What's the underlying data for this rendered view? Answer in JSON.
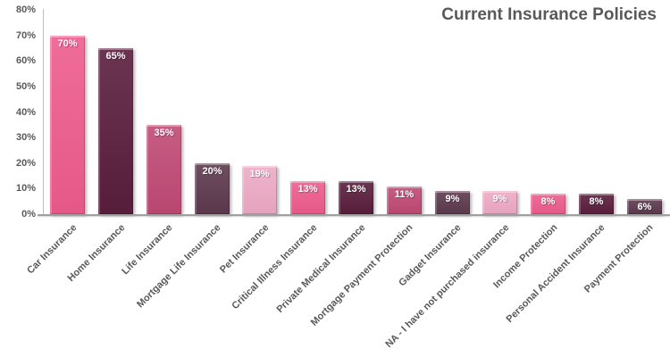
{
  "colors": {
    "text": "#595959",
    "axis_line": "#bfbfbf",
    "baseline": "#a0a0a0",
    "value_label_text": "#ffffff",
    "background": "#ffffff",
    "palette": {
      "bright_pink": "#ee5c8d",
      "dark_maroon": "#5a1e3d",
      "medium_rose": "#c04a75",
      "dark_plum": "#5e3a4e",
      "light_pink": "#eeaac5"
    }
  },
  "chart_data": {
    "type": "bar",
    "title": "Current Insurance Policies",
    "xlabel": "",
    "ylabel": "",
    "ylim": [
      0,
      80
    ],
    "ytick_step": 10,
    "yticks": [
      "0%",
      "10%",
      "20%",
      "30%",
      "40%",
      "50%",
      "60%",
      "70%",
      "80%"
    ],
    "grid": false,
    "legend": false,
    "categories": [
      "Car Insurance",
      "Home Insurance",
      "Life Insurance",
      "Mortgage Life Insurance",
      "Pet Insurance",
      "Critical Illness Insurance",
      "Private Medical Insurance",
      "Mortgage Payment Protection",
      "Gadget Insurance",
      "NA - I have not purchased insurance",
      "Income Protection",
      "Personal Accident Insurance",
      "Payment Protection"
    ],
    "values": [
      70,
      65,
      35,
      20,
      19,
      13,
      13,
      11,
      9,
      9,
      8,
      8,
      6
    ],
    "data_labels": [
      "70%",
      "65%",
      "35%",
      "20%",
      "19%",
      "13%",
      "13%",
      "11%",
      "9%",
      "9%",
      "8%",
      "8%",
      "6%"
    ],
    "bar_colors": [
      "#ee5c8d",
      "#5a1e3d",
      "#c04a75",
      "#5e3a4e",
      "#eeaac5",
      "#ee5c8d",
      "#5a1e3d",
      "#c04a75",
      "#5e3a4e",
      "#eeaac5",
      "#ee5c8d",
      "#5a1e3d",
      "#5e3a4e"
    ]
  }
}
